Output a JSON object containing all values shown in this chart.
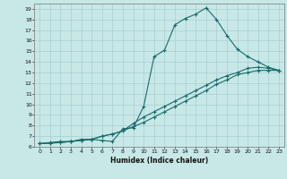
{
  "title": "",
  "xlabel": "Humidex (Indice chaleur)",
  "background_color": "#c8e8e8",
  "grid_color": "#a8cece",
  "line_color": "#1a6b6b",
  "xlim": [
    -0.5,
    23.5
  ],
  "ylim": [
    6,
    19.5
  ],
  "xticks": [
    0,
    1,
    2,
    3,
    4,
    5,
    6,
    7,
    8,
    9,
    10,
    11,
    12,
    13,
    14,
    15,
    16,
    17,
    18,
    19,
    20,
    21,
    22,
    23
  ],
  "yticks": [
    6,
    7,
    8,
    9,
    10,
    11,
    12,
    13,
    14,
    15,
    16,
    17,
    18,
    19
  ],
  "line1_x": [
    0,
    1,
    2,
    3,
    4,
    5,
    6,
    7,
    8,
    9,
    10,
    11,
    12,
    13,
    14,
    15,
    16,
    17,
    18,
    19,
    20,
    21,
    22,
    23
  ],
  "line1_y": [
    6.3,
    6.4,
    6.5,
    6.5,
    6.7,
    6.7,
    6.6,
    6.5,
    7.7,
    7.8,
    9.8,
    14.5,
    15.1,
    17.5,
    18.1,
    18.5,
    19.1,
    18.0,
    16.5,
    15.2,
    14.5,
    14.0,
    13.5,
    13.2
  ],
  "line2_x": [
    0,
    1,
    2,
    3,
    4,
    5,
    6,
    7,
    8,
    9,
    10,
    11,
    12,
    13,
    14,
    15,
    16,
    17,
    18,
    19,
    20,
    21,
    22,
    23
  ],
  "line2_y": [
    6.3,
    6.35,
    6.4,
    6.5,
    6.6,
    6.7,
    7.0,
    7.2,
    7.5,
    7.9,
    8.3,
    8.8,
    9.3,
    9.8,
    10.3,
    10.8,
    11.3,
    11.9,
    12.3,
    12.8,
    13.0,
    13.2,
    13.2,
    13.2
  ],
  "line3_x": [
    0,
    1,
    2,
    3,
    4,
    5,
    6,
    7,
    8,
    9,
    10,
    11,
    12,
    13,
    14,
    15,
    16,
    17,
    18,
    19,
    20,
    21,
    22,
    23
  ],
  "line3_y": [
    6.3,
    6.35,
    6.4,
    6.5,
    6.6,
    6.7,
    7.0,
    7.2,
    7.5,
    8.2,
    8.8,
    9.3,
    9.8,
    10.3,
    10.8,
    11.3,
    11.8,
    12.3,
    12.7,
    13.0,
    13.4,
    13.5,
    13.4,
    13.2
  ]
}
